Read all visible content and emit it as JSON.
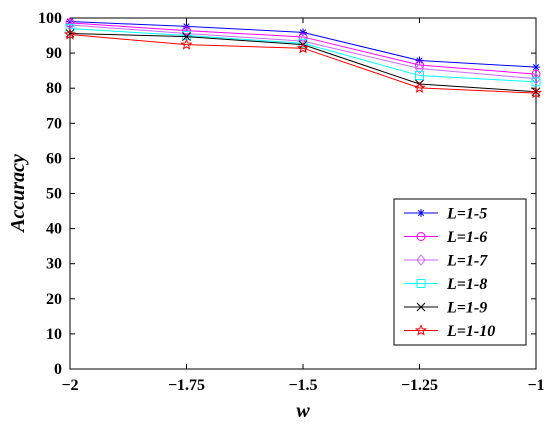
{
  "chart_data": {
    "type": "line",
    "title": "",
    "xlabel": "w",
    "ylabel": "Accuracy",
    "x": [
      -2,
      -1.75,
      -1.5,
      -1.25,
      -1
    ],
    "x_tick_labels": [
      "−2",
      "−1.75",
      "−1.5",
      "−1.25",
      "−1"
    ],
    "xlim": [
      -2,
      -1
    ],
    "ylim": [
      0,
      100
    ],
    "y_ticks": [
      0,
      10,
      20,
      30,
      40,
      50,
      60,
      70,
      80,
      90,
      100
    ],
    "grid": false,
    "legend_position": "bottom-right",
    "series": [
      {
        "name": "L=1-5",
        "values": [
          99.0,
          97.6,
          95.9,
          87.9,
          86.0
        ],
        "color": "#0000ff",
        "marker": "asterisk"
      },
      {
        "name": "L=1-6",
        "values": [
          98.6,
          96.4,
          94.6,
          86.6,
          84.0
        ],
        "color": "#ff00ff",
        "marker": "circle"
      },
      {
        "name": "L=1-7",
        "values": [
          98.0,
          95.6,
          93.4,
          85.6,
          82.7
        ],
        "color": "#cc66ff",
        "marker": "diamond"
      },
      {
        "name": "L=1-8",
        "values": [
          97.0,
          95.0,
          92.8,
          83.6,
          81.8
        ],
        "color": "#00ffff",
        "marker": "square"
      },
      {
        "name": "L=1-9",
        "values": [
          95.6,
          94.7,
          92.4,
          81.2,
          79.0
        ],
        "color": "#000000",
        "marker": "x"
      },
      {
        "name": "L=1-10",
        "values": [
          95.3,
          92.4,
          91.4,
          80.1,
          78.6
        ],
        "color": "#ff0000",
        "marker": "star"
      }
    ]
  }
}
